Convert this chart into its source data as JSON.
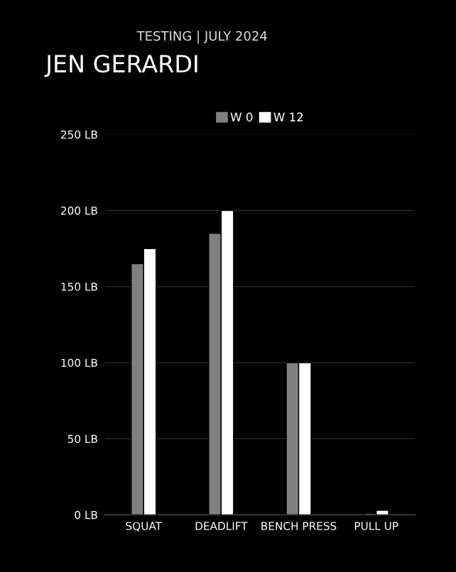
{
  "chart_data": {
    "type": "bar",
    "title": "JEN GERARDI",
    "subtitle": "TESTING | JULY 2024",
    "categories": [
      "SQUAT",
      "DEADLIFT",
      "BENCH PRESS",
      "PULL UP"
    ],
    "series": [
      {
        "name": "W 0",
        "color": "#808080",
        "values": [
          165,
          185,
          100,
          1
        ]
      },
      {
        "name": "W 12",
        "color": "#ffffff",
        "values": [
          175,
          200,
          100,
          3
        ]
      }
    ],
    "ylim": [
      0,
      250
    ],
    "yticks": [
      {
        "value": 0,
        "label": "0 LB"
      },
      {
        "value": 50,
        "label": "50 LB"
      },
      {
        "value": 100,
        "label": "100 LB"
      },
      {
        "value": 150,
        "label": "150 LB"
      },
      {
        "value": 200,
        "label": "200 LB"
      },
      {
        "value": 250,
        "label": "250 LB"
      }
    ],
    "grid": "y",
    "legend": "top"
  }
}
